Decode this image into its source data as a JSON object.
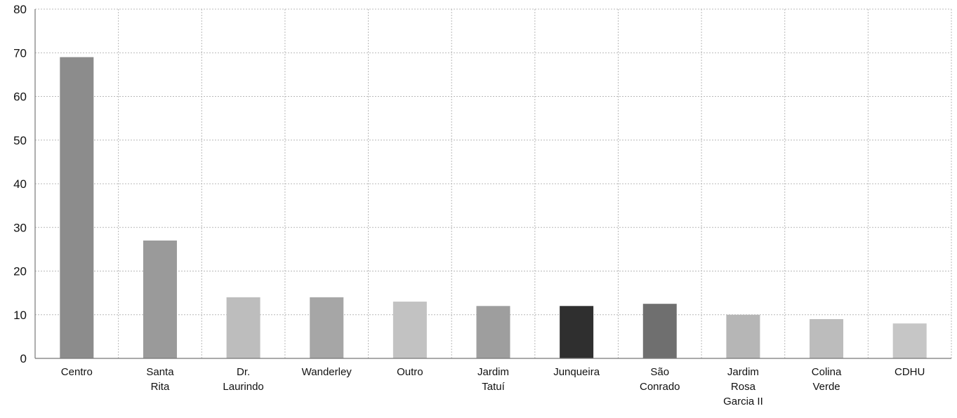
{
  "chart_data": {
    "type": "bar",
    "title": "",
    "xlabel": "",
    "ylabel": "",
    "ylim": [
      0,
      80
    ],
    "yticks": [
      0,
      10,
      20,
      30,
      40,
      50,
      60,
      70,
      80
    ],
    "grid": true,
    "categories": [
      [
        "Centro"
      ],
      [
        "Santa",
        "Rita"
      ],
      [
        "Dr.",
        "Laurindo"
      ],
      [
        "Wanderley"
      ],
      [
        "Outro"
      ],
      [
        "Jardim",
        "Tatuí"
      ],
      [
        "Junqueira"
      ],
      [
        "São",
        "Conrado"
      ],
      [
        "Jardim",
        "Rosa",
        "Garcia II"
      ],
      [
        "Colina",
        "Verde"
      ],
      [
        "CDHU"
      ]
    ],
    "values": [
      69,
      27,
      14,
      14,
      13,
      12,
      12,
      12.5,
      10,
      9,
      8
    ],
    "colors": [
      "#8c8c8c",
      "#9a9a9a",
      "#bdbdbd",
      "#a6a6a6",
      "#c2c2c2",
      "#9e9e9e",
      "#2f2f2f",
      "#6f6f6f",
      "#b6b6b6",
      "#bcbcbc",
      "#c6c6c6"
    ]
  }
}
